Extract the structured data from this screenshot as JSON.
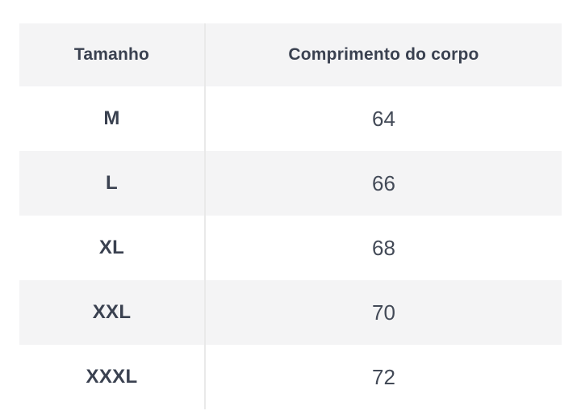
{
  "chart_data": {
    "type": "table",
    "title": "",
    "columns": [
      "Tamanho",
      "Comprimento do corpo"
    ],
    "rows": [
      [
        "M",
        "64"
      ],
      [
        "L",
        "66"
      ],
      [
        "XL",
        "68"
      ],
      [
        "XXL",
        "70"
      ],
      [
        "XXXL",
        "72"
      ]
    ]
  },
  "table": {
    "columns": [
      {
        "label": "Tamanho"
      },
      {
        "label": "Comprimento do corpo"
      }
    ],
    "rows": [
      {
        "size": "M",
        "length": "64"
      },
      {
        "size": "L",
        "length": "66"
      },
      {
        "size": "XL",
        "length": "68"
      },
      {
        "size": "XXL",
        "length": "70"
      },
      {
        "size": "XXXL",
        "length": "72"
      }
    ]
  },
  "colors": {
    "header_bg": "#f4f4f5",
    "row_alt_bg": "#f4f4f5",
    "row_bg": "#ffffff",
    "divider": "#e9e9e9",
    "heading_text": "#3a4150",
    "value_text": "#434a57"
  }
}
